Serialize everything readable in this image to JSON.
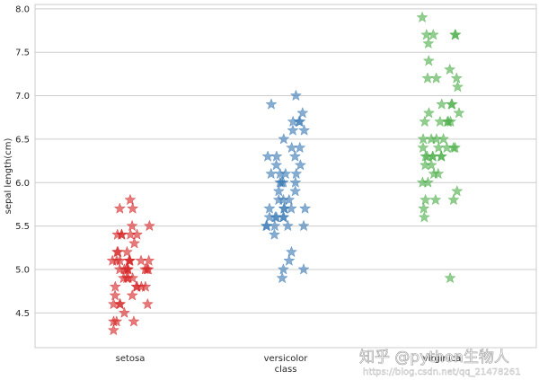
{
  "chart_data": {
    "type": "scatter",
    "subtype": "strip",
    "marker": "star",
    "title": "",
    "xlabel": "class",
    "ylabel": "sepal length(cm)",
    "ylim": [
      4.1,
      8.05
    ],
    "yticks": [
      "4.5",
      "5.0",
      "5.5",
      "6.0",
      "6.5",
      "7.0",
      "7.5",
      "8.0"
    ],
    "grid": "horizontal",
    "categories": [
      "setosa",
      "versicolor",
      "virginica"
    ],
    "series": [
      {
        "category": "setosa",
        "color": "#d62728",
        "values": [
          5.1,
          4.9,
          4.7,
          4.6,
          5.0,
          5.4,
          4.6,
          5.0,
          4.4,
          4.9,
          5.4,
          4.8,
          4.8,
          4.3,
          5.8,
          5.7,
          5.4,
          5.1,
          5.7,
          5.1,
          5.4,
          5.1,
          4.6,
          5.1,
          4.8,
          5.0,
          5.0,
          5.2,
          5.2,
          4.7,
          4.8,
          5.4,
          5.2,
          5.5,
          4.9,
          5.0,
          5.5,
          4.9,
          4.4,
          5.1,
          5.0,
          4.5,
          4.4,
          5.0,
          5.1,
          4.8,
          5.1,
          4.6,
          5.3,
          5.0
        ]
      },
      {
        "category": "versicolor",
        "color": "#3b7bb5",
        "values": [
          7.0,
          6.4,
          6.9,
          5.5,
          6.5,
          5.7,
          6.3,
          4.9,
          6.6,
          5.2,
          5.0,
          5.9,
          6.0,
          6.1,
          5.6,
          6.7,
          5.6,
          5.8,
          6.2,
          5.6,
          5.9,
          6.1,
          6.3,
          6.1,
          6.4,
          6.6,
          6.8,
          6.7,
          6.0,
          5.7,
          5.5,
          5.5,
          5.8,
          6.0,
          5.4,
          6.0,
          6.7,
          6.3,
          5.6,
          5.5,
          5.5,
          6.1,
          5.8,
          5.0,
          5.6,
          5.7,
          5.7,
          6.2,
          5.1,
          5.7
        ]
      },
      {
        "category": "virginica",
        "color": "#4daf4a",
        "values": [
          6.3,
          5.8,
          7.1,
          6.3,
          6.5,
          7.6,
          4.9,
          7.3,
          6.7,
          7.2,
          6.5,
          6.4,
          6.8,
          5.7,
          5.8,
          6.4,
          6.5,
          7.7,
          7.7,
          6.0,
          6.9,
          5.6,
          7.7,
          6.3,
          6.7,
          7.2,
          6.2,
          6.1,
          6.4,
          7.2,
          7.4,
          7.9,
          6.4,
          6.3,
          6.1,
          7.7,
          6.3,
          6.4,
          6.0,
          6.9,
          6.7,
          6.9,
          5.8,
          6.8,
          6.7,
          6.7,
          6.3,
          6.5,
          6.2,
          5.9
        ]
      }
    ]
  },
  "watermark": {
    "main": "知乎 @python生物人",
    "sub": "https://blog.csdn.net/qq_21478261"
  }
}
